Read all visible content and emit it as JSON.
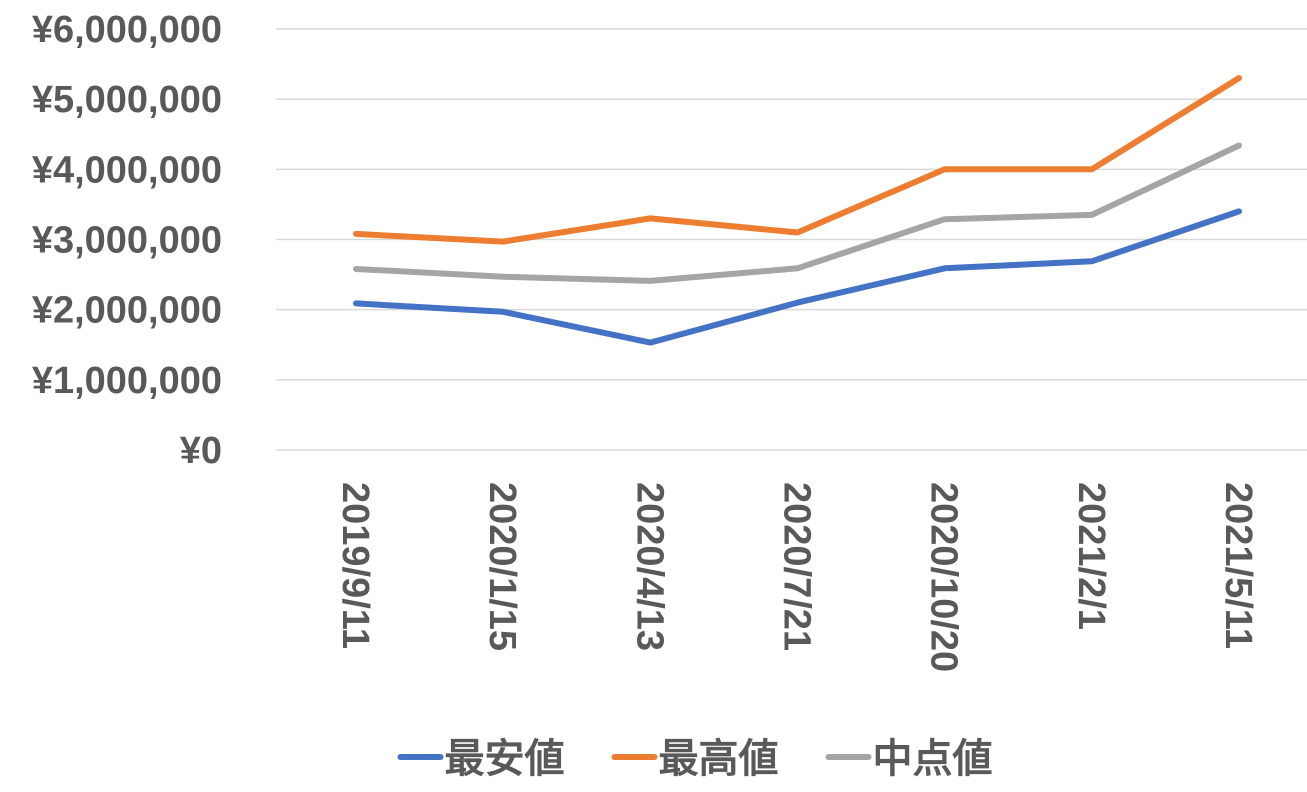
{
  "chart_data": {
    "type": "line",
    "title": "",
    "xlabel": "",
    "ylabel": "",
    "categories": [
      "2019/9/11",
      "2020/1/15",
      "2020/4/13",
      "2020/7/21",
      "2020/10/20",
      "2021/2/1",
      "2021/5/11"
    ],
    "ylim": [
      0,
      6000000
    ],
    "yticks": [
      0,
      1000000,
      2000000,
      3000000,
      4000000,
      5000000,
      6000000
    ],
    "ytick_labels": [
      "¥0",
      "¥1,000,000",
      "¥2,000,000",
      "¥3,000,000",
      "¥4,000,000",
      "¥5,000,000",
      "¥6,000,000"
    ],
    "grid": true,
    "legend_position": "bottom",
    "series": [
      {
        "name": "最安値",
        "color": "#4472C4",
        "values": [
          2090000,
          1970000,
          1530000,
          2100000,
          2590000,
          2690000,
          3400000
        ]
      },
      {
        "name": "最高値",
        "color": "#ED7D31",
        "values": [
          3080000,
          2970000,
          3300000,
          3100000,
          4000000,
          4000000,
          5300000
        ]
      },
      {
        "name": "中点値",
        "color": "#A5A5A5",
        "values": [
          2580000,
          2470000,
          2410000,
          2590000,
          3290000,
          3350000,
          4340000
        ]
      }
    ]
  }
}
